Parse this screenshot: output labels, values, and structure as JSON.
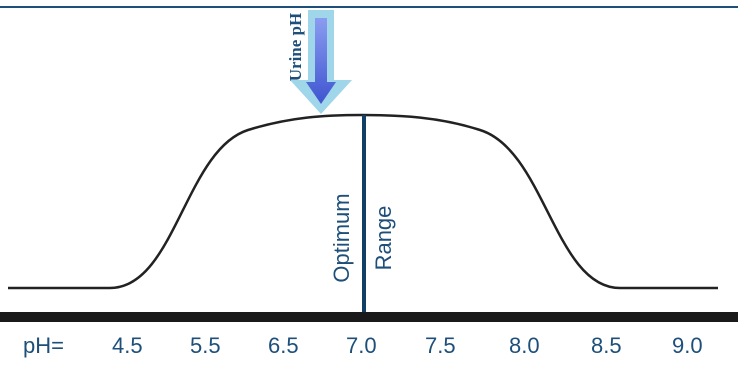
{
  "diagram": {
    "arrow_label": "Urine pH",
    "range_label_left": "Optimum",
    "range_label_right": "Range",
    "axis_prefix": "pH=",
    "ticks": [
      "4.5",
      "5.5",
      "6.5",
      "7.0",
      "7.5",
      "8.0",
      "8.5",
      "9.0"
    ],
    "colors": {
      "text": "#1d4f7a",
      "curve": "#222222",
      "optimum_line": "#123f66",
      "arrow_outer": "#9fd6ea",
      "arrow_inner": "#4f63d6"
    }
  }
}
